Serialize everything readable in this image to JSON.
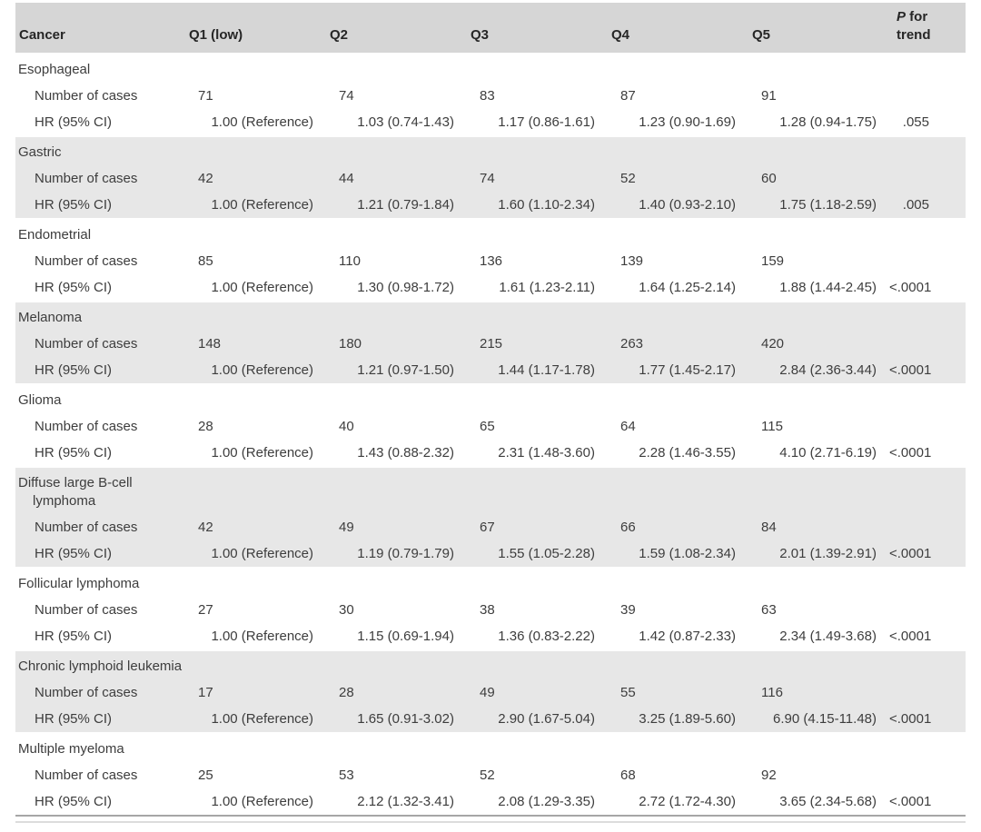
{
  "table": {
    "header": {
      "cancer": "Cancer",
      "q1": "Q1 (low)",
      "q2": "Q2",
      "q3": "Q3",
      "q4": "Q4",
      "q5": "Q5",
      "p_symbol": "P",
      "p_rest": " for trend"
    },
    "row_labels": {
      "cases": "Number of cases",
      "hr": "HR (95% CI)"
    },
    "shading_color": "#e7e7e7",
    "header_color": "#d6d6d6",
    "groups": [
      {
        "name": "Esophageal",
        "shaded": false,
        "cases": [
          "71",
          "74",
          "83",
          "87",
          "91"
        ],
        "hr": [
          "1.00 (Reference)",
          "1.03 (0.74-1.43)",
          "1.17 (0.86-1.61)",
          "1.23 (0.90-1.69)",
          "1.28 (0.94-1.75)"
        ],
        "p": ".055"
      },
      {
        "name": "Gastric",
        "shaded": true,
        "cases": [
          "42",
          "44",
          "74",
          "52",
          "60"
        ],
        "hr": [
          "1.00 (Reference)",
          "1.21 (0.79-1.84)",
          "1.60 (1.10-2.34)",
          "1.40 (0.93-2.10)",
          "1.75 (1.18-2.59)"
        ],
        "p": ".005"
      },
      {
        "name": "Endometrial",
        "shaded": false,
        "cases": [
          "85",
          "110",
          "136",
          "139",
          "159"
        ],
        "hr": [
          "1.00 (Reference)",
          "1.30 (0.98-1.72)",
          "1.61 (1.23-2.11)",
          "1.64 (1.25-2.14)",
          "1.88 (1.44-2.45)"
        ],
        "p": "<.0001"
      },
      {
        "name": "Melanoma",
        "shaded": true,
        "cases": [
          "148",
          "180",
          "215",
          "263",
          "420"
        ],
        "hr": [
          "1.00 (Reference)",
          "1.21 (0.97-1.50)",
          "1.44 (1.17-1.78)",
          "1.77 (1.45-2.17)",
          "2.84 (2.36-3.44)"
        ],
        "p": "<.0001"
      },
      {
        "name": "Glioma",
        "shaded": false,
        "cases": [
          "28",
          "40",
          "65",
          "64",
          "115"
        ],
        "hr": [
          "1.00 (Reference)",
          "1.43 (0.88-2.32)",
          "2.31 (1.48-3.60)",
          "2.28 (1.46-3.55)",
          "4.10 (2.71-6.19)"
        ],
        "p": "<.0001"
      },
      {
        "name": "Diffuse large B-cell lymphoma",
        "shaded": true,
        "cases": [
          "42",
          "49",
          "67",
          "66",
          "84"
        ],
        "hr": [
          "1.00 (Reference)",
          "1.19 (0.79-1.79)",
          "1.55 (1.05-2.28)",
          "1.59 (1.08-2.34)",
          "2.01 (1.39-2.91)"
        ],
        "p": "<.0001"
      },
      {
        "name": "Follicular lymphoma",
        "shaded": false,
        "cases": [
          "27",
          "30",
          "38",
          "39",
          "63"
        ],
        "hr": [
          "1.00 (Reference)",
          "1.15 (0.69-1.94)",
          "1.36 (0.83-2.22)",
          "1.42 (0.87-2.33)",
          "2.34 (1.49-3.68)"
        ],
        "p": "<.0001"
      },
      {
        "name": "Chronic lymphoid leukemia",
        "shaded": true,
        "cases": [
          "17",
          "28",
          "49",
          "55",
          "116"
        ],
        "hr": [
          "1.00 (Reference)",
          "1.65 (0.91-3.02)",
          "2.90 (1.67-5.04)",
          "3.25 (1.89-5.60)",
          "6.90 (4.15-11.48)"
        ],
        "p": "<.0001"
      },
      {
        "name": "Multiple myeloma",
        "shaded": false,
        "cases": [
          "25",
          "53",
          "52",
          "68",
          "92"
        ],
        "hr": [
          "1.00 (Reference)",
          "2.12 (1.32-3.41)",
          "2.08 (1.29-3.35)",
          "2.72 (1.72-4.30)",
          "3.65 (2.34-5.68)"
        ],
        "p": "<.0001"
      }
    ]
  }
}
